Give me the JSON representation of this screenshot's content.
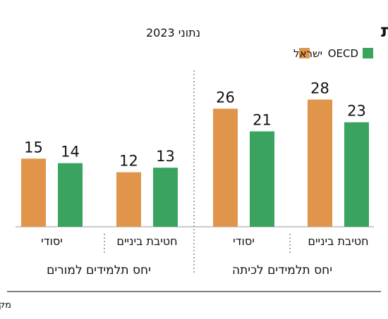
{
  "chart_data": {
    "type": "bar",
    "title": "יש מורים, אין כיתות",
    "subtitle": "נתוני 2023",
    "source": "מקור: עיבוד המשרוקית לנתוני OECD",
    "legend": [
      "ישראל",
      "OECD"
    ],
    "colors": {
      "ישראל": "#e0954a",
      "OECD": "#3aa35f"
    },
    "groups": [
      {
        "label": "יחס תלמידים לכיתה",
        "categories": [
          {
            "label": "חטיבת ביניים",
            "values": [
              28,
              23
            ]
          },
          {
            "label": "יסודי",
            "values": [
              26,
              21
            ]
          }
        ]
      },
      {
        "label": "יחס תלמידים למורים",
        "categories": [
          {
            "label": "חטיבת ביניים",
            "values": [
              12,
              13
            ]
          },
          {
            "label": "יסודי",
            "values": [
              15,
              14
            ]
          }
        ]
      }
    ]
  }
}
